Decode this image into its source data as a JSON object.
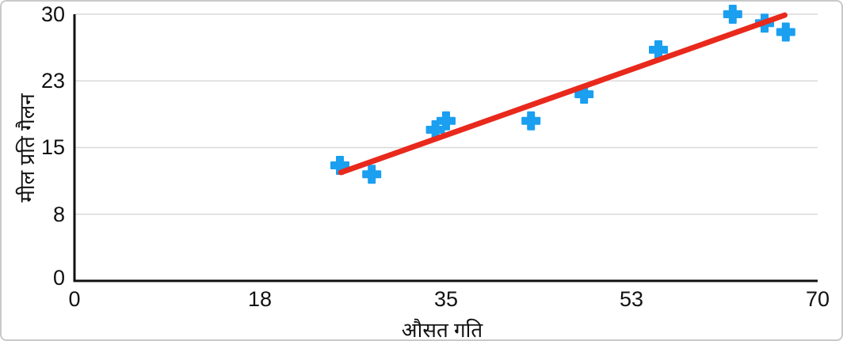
{
  "chart_data": {
    "type": "scatter",
    "title": "",
    "xlabel": "औसत गति",
    "ylabel": "मील प्रति गैलन",
    "x_ticks": [
      "0",
      "18",
      "35",
      "53",
      "70"
    ],
    "y_ticks": [
      "30",
      "23",
      "15",
      "8",
      "0"
    ],
    "xlim": [
      0,
      70
    ],
    "ylim": [
      0,
      30
    ],
    "grid": "horizontal",
    "legend_position": "none",
    "series": [
      {
        "name": "scatter-points",
        "marker": "plus",
        "color": "#1b9ff0",
        "points": [
          [
            25,
            13
          ],
          [
            28,
            12
          ],
          [
            34,
            17
          ],
          [
            35,
            18
          ],
          [
            43,
            18
          ],
          [
            48,
            21
          ],
          [
            55,
            26
          ],
          [
            62,
            30
          ],
          [
            65,
            29
          ],
          [
            67,
            28
          ]
        ]
      }
    ],
    "trendline": {
      "type": "linear",
      "color": "#e8291c",
      "start": [
        25.1,
        12.2
      ],
      "end": [
        66.9,
        29.9
      ]
    },
    "colors": {
      "axis": "#111111",
      "grid": "#d9d9d9",
      "background": "#ffffff",
      "frame_border": "#c9c9c9"
    }
  }
}
